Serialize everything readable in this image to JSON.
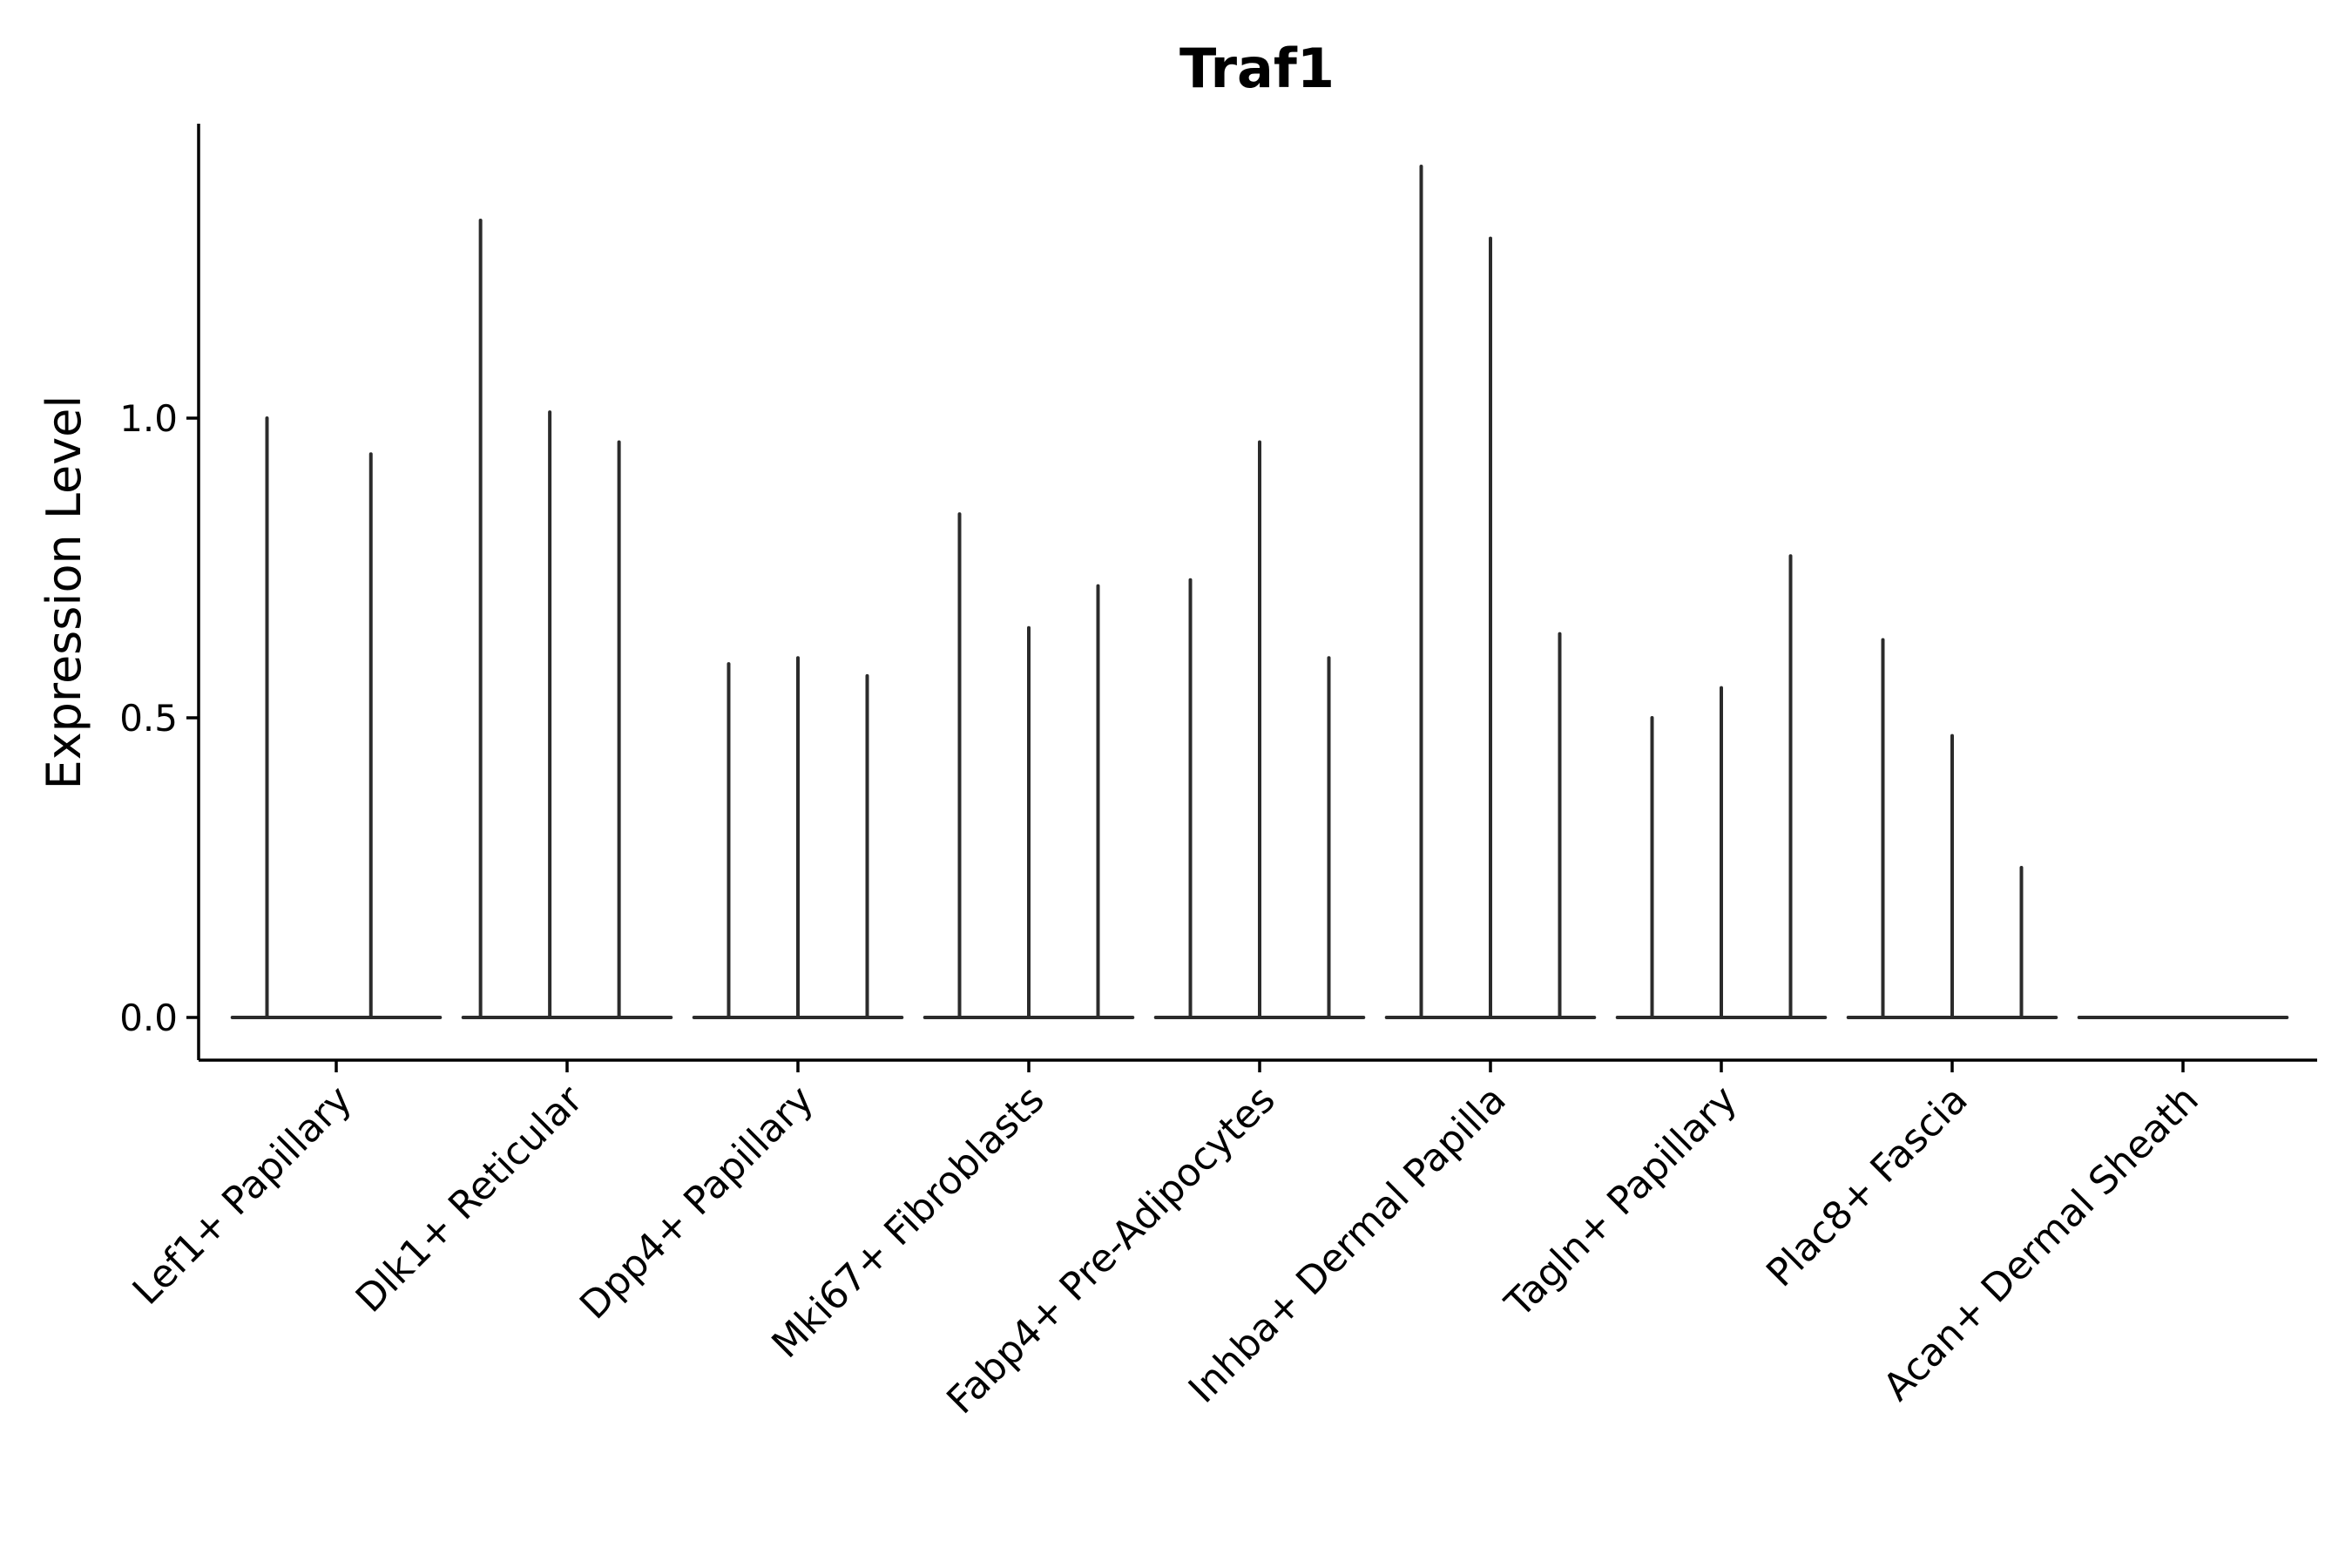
{
  "chart_data": {
    "type": "violin",
    "title": "Traf1",
    "xlabel": "",
    "ylabel": "Expression Level",
    "ylim": [
      -0.07,
      1.5
    ],
    "yticks": [
      0.0,
      0.5,
      1.0
    ],
    "ytick_labels": [
      "0.0",
      "0.5",
      "1.0"
    ],
    "grid": false,
    "categories": [
      "Lef1+ Papillary",
      "Dlk1+ Reticular",
      "Dpp4+ Papillary",
      "Mki67+ Fibroblasts",
      "Fabp4+ Pre-Adipocytes",
      "Inhba+ Dermal Papilla",
      "Tagln+ Papillary",
      "Plac8+ Fascia",
      "Acan+ Dermal Sheath"
    ],
    "spikes": [
      {
        "category": "Lef1+ Papillary",
        "x": 0.7,
        "max": 1.0
      },
      {
        "category": "Lef1+ Papillary",
        "x": 1.15,
        "max": 0.94
      },
      {
        "category": "Dlk1+ Reticular",
        "x": 1.625,
        "max": 1.33
      },
      {
        "category": "Dlk1+ Reticular",
        "x": 1.925,
        "max": 1.01
      },
      {
        "category": "Dlk1+ Reticular",
        "x": 2.225,
        "max": 0.96
      },
      {
        "category": "Dpp4+ Papillary",
        "x": 2.7,
        "max": 0.59
      },
      {
        "category": "Dpp4+ Papillary",
        "x": 3.0,
        "max": 0.6
      },
      {
        "category": "Dpp4+ Papillary",
        "x": 3.3,
        "max": 0.57
      },
      {
        "category": "Mki67+ Fibroblasts",
        "x": 3.7,
        "max": 0.84
      },
      {
        "category": "Mki67+ Fibroblasts",
        "x": 4.0,
        "max": 0.65
      },
      {
        "category": "Mki67+ Fibroblasts",
        "x": 4.3,
        "max": 0.72
      },
      {
        "category": "Fabp4+ Pre-Adipocytes",
        "x": 4.7,
        "max": 0.73
      },
      {
        "category": "Fabp4+ Pre-Adipocytes",
        "x": 5.0,
        "max": 0.96
      },
      {
        "category": "Fabp4+ Pre-Adipocytes",
        "x": 5.3,
        "max": 0.6
      },
      {
        "category": "Inhba+ Dermal Papilla",
        "x": 5.7,
        "max": 1.42
      },
      {
        "category": "Inhba+ Dermal Papilla",
        "x": 6.0,
        "max": 1.3
      },
      {
        "category": "Inhba+ Dermal Papilla",
        "x": 6.3,
        "max": 0.64
      },
      {
        "category": "Tagln+ Papillary",
        "x": 6.7,
        "max": 0.5
      },
      {
        "category": "Tagln+ Papillary",
        "x": 7.0,
        "max": 0.55
      },
      {
        "category": "Tagln+ Papillary",
        "x": 7.3,
        "max": 0.77
      },
      {
        "category": "Plac8+ Fascia",
        "x": 7.7,
        "max": 0.63
      },
      {
        "category": "Plac8+ Fascia",
        "x": 8.0,
        "max": 0.47
      },
      {
        "category": "Plac8+ Fascia",
        "x": 8.3,
        "max": 0.25
      }
    ]
  }
}
